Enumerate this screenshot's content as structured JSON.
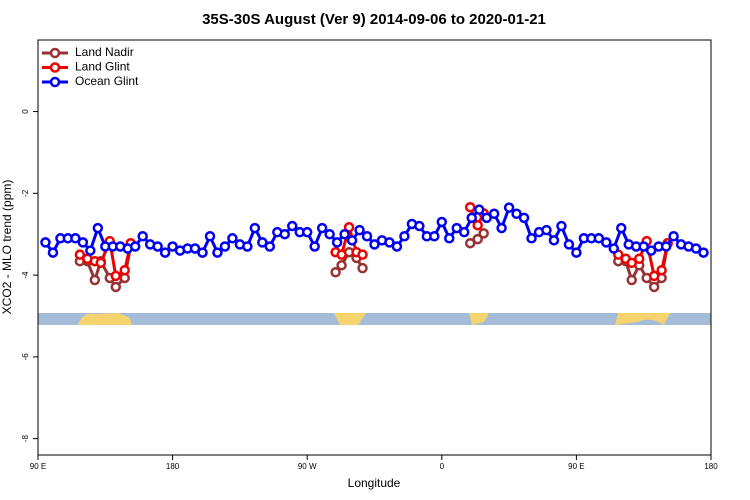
{
  "chart_data": {
    "type": "line",
    "title": "35S-30S August (Ver 9)   2014-09-06 to 2020-01-21",
    "xlabel": "Longitude",
    "ylabel": "XCO2 - MLO trend (ppm)",
    "xlim": [
      90,
      540
    ],
    "ylim": [
      -8.4,
      1.75
    ],
    "xticks": [
      {
        "value": 90,
        "label": "90 E"
      },
      180,
      {
        "value": 270,
        "label": "90 W"
      },
      {
        "value": 360,
        "label": "0"
      },
      {
        "value": 450,
        "label": "90 E"
      },
      {
        "value": 540,
        "label": "180"
      }
    ],
    "yticks": [
      0,
      -2,
      -4,
      -6,
      -8
    ],
    "legend": "upper left",
    "series": [
      {
        "name": "Land Nadir",
        "color": "#993333",
        "x": [
          118,
          123,
          128,
          132,
          138,
          142,
          148,
          152,
          null,
          289,
          293,
          298,
          303,
          307,
          null,
          379,
          384,
          388,
          null,
          478,
          483,
          487,
          492,
          497,
          502,
          507,
          511
        ],
        "values": [
          -3.66,
          -3.66,
          -4.12,
          -3.66,
          -4.07,
          -4.29,
          -4.07,
          -3.27,
          null,
          -3.93,
          -3.76,
          -3.44,
          -3.58,
          -3.83,
          null,
          -3.22,
          -3.12,
          -2.98,
          null,
          -3.66,
          -3.66,
          -4.12,
          -3.76,
          -4.07,
          -4.29,
          -4.07,
          -3.22
        ]
      },
      {
        "name": "Land Glint",
        "color": "#ee0000",
        "x": [
          118,
          123,
          128,
          132,
          138,
          142,
          148,
          152,
          null,
          289,
          293,
          298,
          303,
          307,
          null,
          379,
          384,
          388,
          null,
          478,
          483,
          487,
          492,
          497,
          502,
          507,
          511
        ],
        "values": [
          -3.5,
          -3.6,
          -3.66,
          -3.7,
          -3.17,
          -4.02,
          -3.88,
          -3.22,
          null,
          -3.44,
          -3.5,
          -2.83,
          -3.44,
          -3.5,
          null,
          -2.34,
          -2.78,
          -2.49,
          null,
          -3.5,
          -3.6,
          -3.7,
          -3.6,
          -3.17,
          -4.02,
          -3.88,
          -3.22
        ]
      },
      {
        "name": "Ocean Glint",
        "color": "#0000ee",
        "x": [
          95,
          100,
          105,
          110,
          115,
          120,
          125,
          130,
          135,
          140,
          145,
          150,
          155,
          160,
          165,
          170,
          175,
          180,
          185,
          190,
          195,
          200,
          205,
          210,
          215,
          220,
          225,
          230,
          235,
          240,
          245,
          250,
          255,
          260,
          265,
          270,
          275,
          280,
          285,
          290,
          295,
          300,
          305,
          310,
          315,
          320,
          325,
          330,
          335,
          340,
          345,
          350,
          355,
          360,
          365,
          370,
          375,
          380,
          385,
          390,
          395,
          400,
          405,
          410,
          415,
          420,
          425,
          430,
          435,
          440,
          445,
          450,
          455,
          460,
          465,
          470,
          475,
          480,
          485,
          490,
          495,
          500,
          505,
          510,
          515,
          520,
          525,
          530,
          535
        ],
        "values": [
          -3.2,
          -3.45,
          -3.1,
          -3.1,
          -3.1,
          -3.2,
          -3.4,
          -2.85,
          -3.3,
          -3.3,
          -3.3,
          -3.35,
          -3.3,
          -3.05,
          -3.25,
          -3.3,
          -3.45,
          -3.3,
          -3.4,
          -3.35,
          -3.35,
          -3.45,
          -3.05,
          -3.45,
          -3.3,
          -3.1,
          -3.25,
          -3.3,
          -2.85,
          -3.2,
          -3.3,
          -2.95,
          -3.0,
          -2.8,
          -2.95,
          -2.95,
          -3.3,
          -2.85,
          -3.0,
          -3.2,
          -3.0,
          -3.15,
          -2.9,
          -3.05,
          -3.25,
          -3.15,
          -3.2,
          -3.3,
          -3.05,
          -2.75,
          -2.8,
          -3.05,
          -3.05,
          -2.7,
          -3.1,
          -2.85,
          -2.95,
          -2.6,
          -2.4,
          -2.6,
          -2.5,
          -2.85,
          -2.35,
          -2.5,
          -2.6,
          -3.1,
          -2.95,
          -2.9,
          -3.15,
          -2.8,
          -3.25,
          -3.45,
          -3.1,
          -3.1,
          -3.1,
          -3.2,
          -3.35,
          -2.85,
          -3.25,
          -3.3,
          -3.3,
          -3.4,
          -3.3,
          -3.3,
          -3.05,
          -3.25,
          -3.3,
          -3.35,
          -3.45
        ]
      }
    ]
  }
}
